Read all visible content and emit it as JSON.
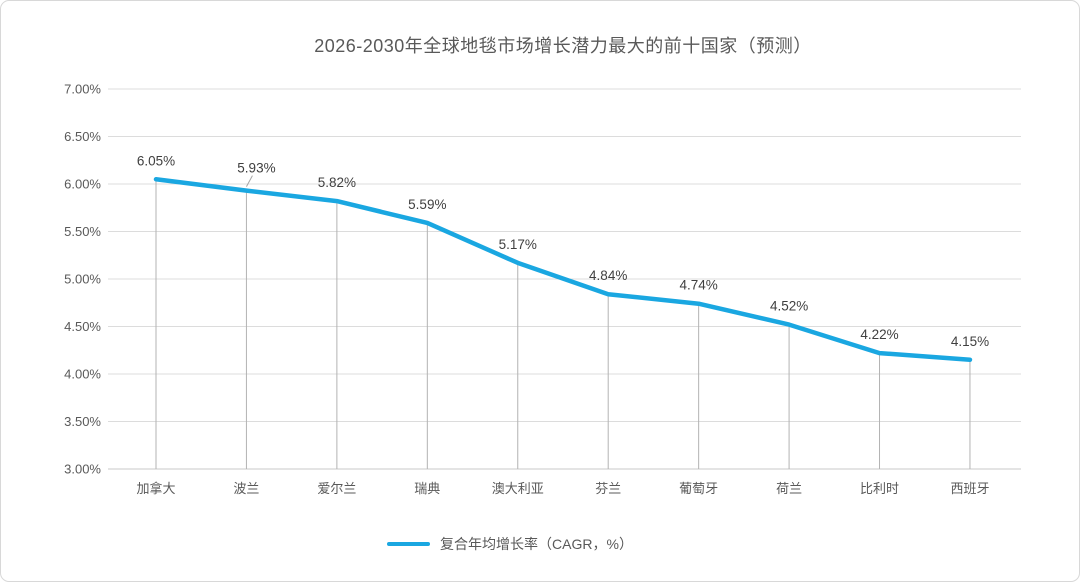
{
  "title": "2026-2030年全球地毯市场增长潜力最大的前十国家（预测）",
  "legend": {
    "label": "复合年均增长率（CAGR，%）"
  },
  "colors": {
    "line": "#1aa7e1",
    "title_text": "#595959",
    "axis_text": "#595959",
    "data_label_text": "#3f3f3f",
    "gridline": "#dcdcdc",
    "axis_line": "#c9c9c9",
    "drop_line": "#b3b3b3",
    "card_border": "#d8d8d8",
    "background": "#ffffff"
  },
  "chart_data": {
    "type": "line",
    "title": "2026-2030年全球地毯市场增长潜力最大的前十国家（预测）",
    "categories": [
      "加拿大",
      "波兰",
      "爱尔兰",
      "瑞典",
      "澳大利亚",
      "芬兰",
      "葡萄牙",
      "荷兰",
      "比利时",
      "西班牙"
    ],
    "series": [
      {
        "name": "复合年均增长率（CAGR，%）",
        "values": [
          6.05,
          5.93,
          5.82,
          5.59,
          5.17,
          4.84,
          4.74,
          4.52,
          4.22,
          4.15
        ]
      }
    ],
    "data_labels": [
      "6.05%",
      "5.93%",
      "5.82%",
      "5.59%",
      "5.17%",
      "4.84%",
      "4.74%",
      "4.52%",
      "4.22%",
      "4.15%"
    ],
    "xlabel": "",
    "ylabel": "",
    "ylim": [
      3.0,
      7.0
    ],
    "ytick_step": 0.5,
    "ytick_labels": [
      "7.00%",
      "6.50%",
      "6.00%",
      "5.50%",
      "5.00%",
      "4.50%",
      "4.00%",
      "3.50%",
      "3.00%"
    ],
    "grid": "horizontal gridlines + vertical drop lines from each point to x-axis",
    "legend_position": "bottom-center",
    "data_label_position": "above points; second label offset up-right with leader line"
  }
}
